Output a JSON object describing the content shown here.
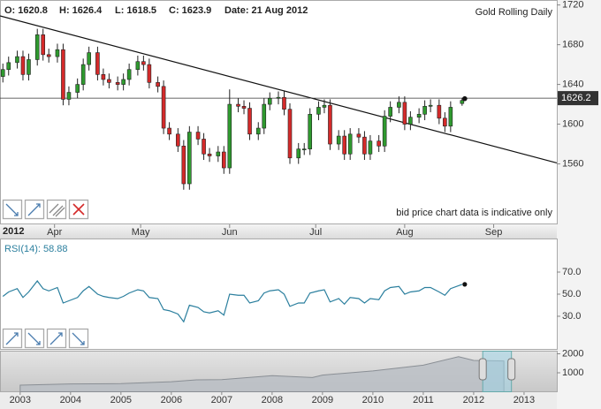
{
  "header": {
    "fields": [
      {
        "label": "O:",
        "value": 1620.8
      },
      {
        "label": "H:",
        "value": 1626.4
      },
      {
        "label": "L:",
        "value": 1618.5
      },
      {
        "label": "C:",
        "value": 1623.9
      },
      {
        "label": "Date:",
        "value": "21 Aug 2012"
      }
    ]
  },
  "chart_data": [
    {
      "type": "candlestick",
      "title": "Gold Rolling Daily",
      "note": "bid price chart data is indicative only",
      "year_label": "2012",
      "x": [
        "2012-03-14",
        "2012-03-16",
        "2012-03-19",
        "2012-03-21",
        "2012-03-23",
        "2012-03-26",
        "2012-03-28",
        "2012-03-30",
        "2012-04-02",
        "2012-04-04",
        "2012-04-06",
        "2012-04-09",
        "2012-04-11",
        "2012-04-13",
        "2012-04-16",
        "2012-04-18",
        "2012-04-20",
        "2012-04-23",
        "2012-04-25",
        "2012-04-27",
        "2012-04-30",
        "2012-05-02",
        "2012-05-04",
        "2012-05-07",
        "2012-05-09",
        "2012-05-11",
        "2012-05-14",
        "2012-05-16",
        "2012-05-18",
        "2012-05-21",
        "2012-05-23",
        "2012-05-25",
        "2012-05-28",
        "2012-05-30",
        "2012-06-01",
        "2012-06-04",
        "2012-06-06",
        "2012-06-08",
        "2012-06-11",
        "2012-06-13",
        "2012-06-15",
        "2012-06-18",
        "2012-06-20",
        "2012-06-22",
        "2012-06-25",
        "2012-06-27",
        "2012-06-29",
        "2012-07-02",
        "2012-07-04",
        "2012-07-06",
        "2012-07-09",
        "2012-07-11",
        "2012-07-13",
        "2012-07-16",
        "2012-07-18",
        "2012-07-20",
        "2012-07-23",
        "2012-07-25",
        "2012-07-27",
        "2012-07-30",
        "2012-08-01",
        "2012-08-03",
        "2012-08-06",
        "2012-08-08",
        "2012-08-10",
        "2012-08-13",
        "2012-08-15",
        "2012-08-17",
        "2012-08-21"
      ],
      "open": [
        1648,
        1655,
        1662,
        1668,
        1650,
        1665,
        1690,
        1670,
        1668,
        1675,
        1625,
        1632,
        1640,
        1660,
        1672,
        1650,
        1645,
        1642,
        1640,
        1645,
        1655,
        1663,
        1660,
        1642,
        1638,
        1596,
        1590,
        1578,
        1540,
        1592,
        1585,
        1570,
        1568,
        1572,
        1556,
        1620,
        1618,
        1616,
        1590,
        1596,
        1620,
        1626,
        1627,
        1615,
        1566,
        1575,
        1575,
        1610,
        1617,
        1619,
        1580,
        1588,
        1570,
        1590,
        1587,
        1570,
        1583,
        1578,
        1608,
        1617,
        1622,
        1600,
        1607,
        1610,
        1618,
        1619,
        1606,
        1598,
        1620.8
      ],
      "high": [
        1661,
        1668,
        1674,
        1674,
        1671,
        1696,
        1696,
        1676,
        1681,
        1681,
        1638,
        1646,
        1666,
        1678,
        1678,
        1656,
        1651,
        1648,
        1651,
        1661,
        1669,
        1669,
        1666,
        1648,
        1644,
        1602,
        1596,
        1584,
        1598,
        1598,
        1591,
        1576,
        1578,
        1578,
        1635,
        1626,
        1624,
        1622,
        1602,
        1626,
        1632,
        1633,
        1633,
        1621,
        1581,
        1581,
        1616,
        1623,
        1625,
        1625,
        1594,
        1594,
        1596,
        1596,
        1593,
        1589,
        1589,
        1614,
        1623,
        1628,
        1628,
        1613,
        1616,
        1624,
        1625,
        1625,
        1612,
        1623,
        1626.4
      ],
      "low": [
        1642,
        1649,
        1656,
        1644,
        1644,
        1659,
        1664,
        1662,
        1662,
        1619,
        1619,
        1626,
        1634,
        1654,
        1644,
        1639,
        1636,
        1634,
        1634,
        1639,
        1649,
        1654,
        1636,
        1632,
        1590,
        1584,
        1572,
        1534,
        1534,
        1579,
        1564,
        1562,
        1562,
        1550,
        1550,
        1612,
        1610,
        1584,
        1584,
        1590,
        1614,
        1620,
        1609,
        1560,
        1560,
        1569,
        1569,
        1604,
        1611,
        1574,
        1574,
        1564,
        1564,
        1581,
        1564,
        1564,
        1572,
        1572,
        1602,
        1611,
        1594,
        1594,
        1601,
        1604,
        1612,
        1600,
        1592,
        1592,
        1618.5
      ],
      "close": [
        1655,
        1662,
        1668,
        1650,
        1665,
        1690,
        1670,
        1668,
        1675,
        1625,
        1632,
        1640,
        1660,
        1672,
        1650,
        1645,
        1642,
        1640,
        1645,
        1655,
        1663,
        1660,
        1642,
        1638,
        1596,
        1590,
        1578,
        1540,
        1592,
        1585,
        1570,
        1568,
        1572,
        1556,
        1620,
        1618,
        1616,
        1590,
        1596,
        1620,
        1626,
        1627,
        1615,
        1566,
        1575,
        1575,
        1610,
        1617,
        1619,
        1580,
        1588,
        1570,
        1590,
        1587,
        1570,
        1583,
        1578,
        1608,
        1617,
        1622,
        1600,
        1607,
        1610,
        1618,
        1619,
        1606,
        1598,
        1617,
        1623.9
      ],
      "up_color": "#2f9a2f",
      "down_color": "#d42a2a",
      "xlim": [
        "2012-03-13",
        "2012-09-23"
      ],
      "xticks": [
        {
          "value": "2012-04-01",
          "label": "Apr"
        },
        {
          "value": "2012-05-01",
          "label": "May"
        },
        {
          "value": "2012-06-01",
          "label": "Jun"
        },
        {
          "value": "2012-07-01",
          "label": "Jul"
        },
        {
          "value": "2012-08-01",
          "label": "Aug"
        },
        {
          "value": "2012-09-01",
          "label": "Sep"
        }
      ],
      "ylim": [
        1500,
        1725
      ],
      "yticks": [
        1560,
        1600,
        1640,
        1680,
        1720
      ],
      "current_price": 1626.2,
      "trendline": {
        "x": [
          "2012-03-13",
          "2012-09-23"
        ],
        "values": [
          1709,
          1561
        ]
      }
    },
    {
      "type": "line",
      "label": "RSI(14):",
      "color": "#2b7f9e",
      "values": [
        48,
        52,
        55,
        47,
        52,
        62,
        55,
        53,
        56,
        42,
        44,
        47,
        53,
        57,
        50,
        48,
        47,
        46,
        48,
        51,
        54,
        53,
        47,
        46,
        36,
        35,
        32,
        25,
        40,
        38,
        34,
        33,
        35,
        31,
        50,
        49,
        49,
        42,
        44,
        51,
        53,
        54,
        50,
        39,
        42,
        42,
        51,
        53,
        54,
        43,
        46,
        41,
        47,
        46,
        42,
        46,
        45,
        53,
        56,
        57,
        50,
        52,
        53,
        56,
        56,
        52,
        49,
        55,
        58.88
      ],
      "ylim": [
        0,
        100
      ],
      "yticks": [
        {
          "value": 70,
          "label": "70.0"
        },
        {
          "value": 50,
          "label": "50.0"
        },
        {
          "value": 30,
          "label": "30.0"
        }
      ]
    },
    {
      "type": "area",
      "color": "#8a8f95",
      "x": [
        2003,
        2004,
        2005,
        2006,
        2006.5,
        2007,
        2008,
        2008.8,
        2009,
        2010,
        2011,
        2011.7,
        2012,
        2012.6
      ],
      "values": [
        350,
        410,
        430,
        530,
        630,
        640,
        850,
        750,
        880,
        1100,
        1400,
        1850,
        1650,
        1620
      ],
      "xlim": [
        2002.6,
        2013.65
      ],
      "xticks": [
        2003,
        2004,
        2005,
        2006,
        2007,
        2008,
        2009,
        2010,
        2011,
        2012,
        2013
      ],
      "ylim": [
        0,
        2140
      ],
      "yticks": [
        1000,
        2000
      ],
      "selection": [
        2012.18,
        2012.75
      ]
    }
  ]
}
